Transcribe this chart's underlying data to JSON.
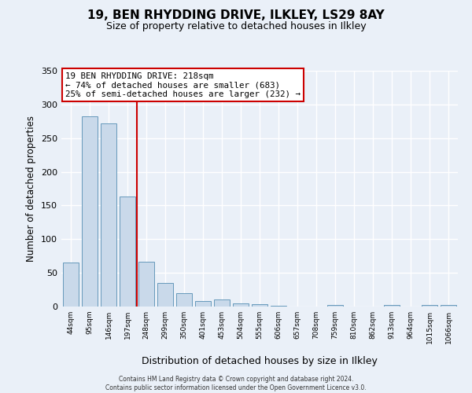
{
  "title": "19, BEN RHYDDING DRIVE, ILKLEY, LS29 8AY",
  "subtitle": "Size of property relative to detached houses in Ilkley",
  "xlabel": "Distribution of detached houses by size in Ilkley",
  "ylabel": "Number of detached properties",
  "bar_labels": [
    "44sqm",
    "95sqm",
    "146sqm",
    "197sqm",
    "248sqm",
    "299sqm",
    "350sqm",
    "401sqm",
    "453sqm",
    "504sqm",
    "555sqm",
    "606sqm",
    "657sqm",
    "708sqm",
    "759sqm",
    "810sqm",
    "862sqm",
    "913sqm",
    "964sqm",
    "1015sqm",
    "1066sqm"
  ],
  "bar_values": [
    65,
    282,
    272,
    163,
    67,
    35,
    20,
    8,
    10,
    5,
    3,
    1,
    0,
    0,
    2,
    0,
    0,
    2,
    0,
    2,
    2
  ],
  "bar_color": "#c9d9ea",
  "bar_edge_color": "#6699bb",
  "annotation_line1": "19 BEN RHYDDING DRIVE: 218sqm",
  "annotation_line2": "← 74% of detached houses are smaller (683)",
  "annotation_line3": "25% of semi-detached houses are larger (232) →",
  "annotation_box_color": "#ffffff",
  "annotation_box_edge_color": "#cc0000",
  "ylim": [
    0,
    350
  ],
  "yticks": [
    0,
    50,
    100,
    150,
    200,
    250,
    300,
    350
  ],
  "vline_color": "#cc0000",
  "vline_x": 3.5,
  "bg_color": "#eaf0f8",
  "grid_color": "#ffffff",
  "footer_line1": "Contains HM Land Registry data © Crown copyright and database right 2024.",
  "footer_line2": "Contains public sector information licensed under the Open Government Licence v3.0."
}
